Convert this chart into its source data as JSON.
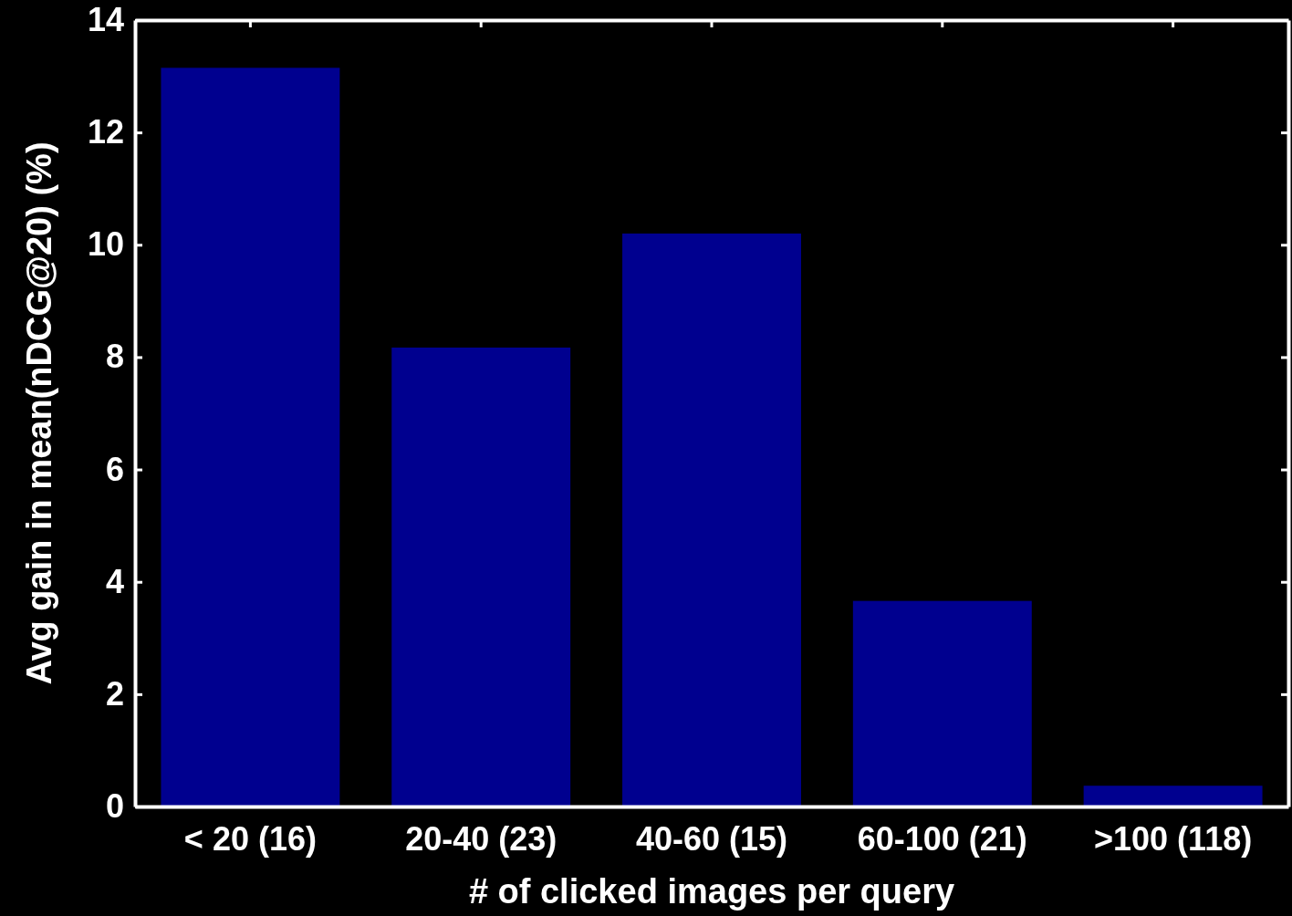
{
  "chart_data": {
    "type": "bar",
    "xlabel": "# of clicked images per query",
    "ylabel": "Avg gain in mean(nDCG@20) (%)",
    "categories": [
      "< 20 (16)",
      "20-40 (23)",
      "40-60 (15)",
      "60-100 (21)",
      ">100 (118)"
    ],
    "values": [
      13.15,
      8.17,
      10.2,
      3.66,
      0.37
    ],
    "color": "#00008f",
    "ylim": [
      0,
      14
    ],
    "yticks": [
      0,
      2,
      4,
      6,
      8,
      10,
      12,
      14
    ],
    "grid": false
  }
}
